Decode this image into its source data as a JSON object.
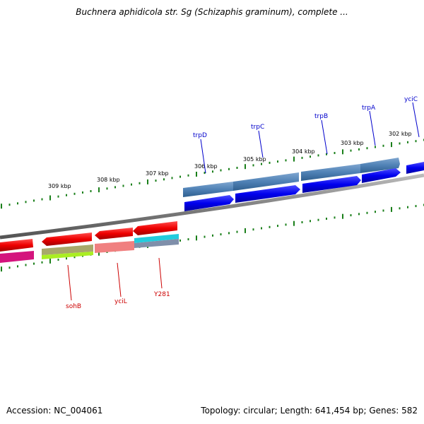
{
  "title": "Buchnera aphidicola str. Sg (Schizaphis graminum), complete ...",
  "footer": {
    "accession": "Accession: NC_004061",
    "summary": "Topology: circular; Length: 641,454 bp; Genes: 582"
  },
  "scale_labels": [
    "309 kbp",
    "308 kbp",
    "307 kbp",
    "306 kbp",
    "305 kbp",
    "304 kbp",
    "303 kbp",
    "302 kbp"
  ],
  "genes_forward": [
    "trpD",
    "trpC",
    "trpB",
    "trpA",
    "yciC"
  ],
  "genes_reverse": [
    "sohB",
    "yciL",
    "Y281"
  ],
  "colors": {
    "backbone": "#808080",
    "ticks": "#1a7f1a",
    "forward_gene": "#0000ee",
    "forward_cds": "#4f81b5",
    "reverse_gene": "#ee0000",
    "forward_label": "#0000cc",
    "reverse_label": "#cc0000"
  }
}
